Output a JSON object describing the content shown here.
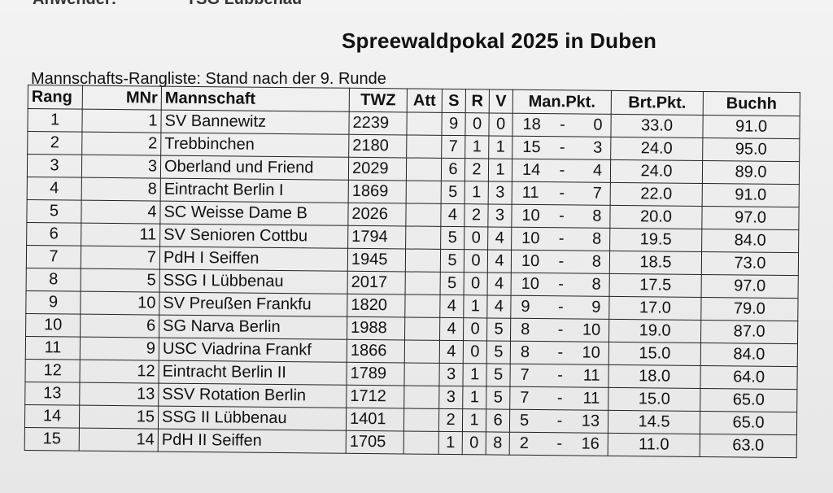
{
  "header": {
    "top_label": "Anwender:",
    "top_value": "TSG Lübbenau",
    "title": "Spreewaldpokal 2025 in Duben",
    "subtitle": "Mannschafts-Rangliste: Stand nach der 9. Runde"
  },
  "columns": [
    "Rang",
    "MNr",
    "Mannschaft",
    "TWZ",
    "Att",
    "S",
    "R",
    "V",
    "Man.Pkt.",
    "Brt.Pkt.",
    "Buchh"
  ],
  "rows": [
    {
      "rang": "1",
      "mnr": "1",
      "name": "SV Bannewitz",
      "twz": "2239",
      "att": "",
      "s": "9",
      "r": "0",
      "v": "0",
      "mp_a": "18",
      "mp_b": "0",
      "brt": "33.0",
      "buch": "91.0"
    },
    {
      "rang": "2",
      "mnr": "2",
      "name": "Trebbinchen",
      "twz": "2180",
      "att": "",
      "s": "7",
      "r": "1",
      "v": "1",
      "mp_a": "15",
      "mp_b": "3",
      "brt": "24.0",
      "buch": "95.0"
    },
    {
      "rang": "3",
      "mnr": "3",
      "name": "Oberland und Friend",
      "twz": "2029",
      "att": "",
      "s": "6",
      "r": "2",
      "v": "1",
      "mp_a": "14",
      "mp_b": "4",
      "brt": "24.0",
      "buch": "89.0"
    },
    {
      "rang": "4",
      "mnr": "8",
      "name": "Eintracht Berlin I",
      "twz": "1869",
      "att": "",
      "s": "5",
      "r": "1",
      "v": "3",
      "mp_a": "11",
      "mp_b": "7",
      "brt": "22.0",
      "buch": "91.0"
    },
    {
      "rang": "5",
      "mnr": "4",
      "name": "SC Weisse Dame B",
      "twz": "2026",
      "att": "",
      "s": "4",
      "r": "2",
      "v": "3",
      "mp_a": "10",
      "mp_b": "8",
      "brt": "20.0",
      "buch": "97.0"
    },
    {
      "rang": "6",
      "mnr": "11",
      "name": "SV Senioren Cottbu",
      "twz": "1794",
      "att": "",
      "s": "5",
      "r": "0",
      "v": "4",
      "mp_a": "10",
      "mp_b": "8",
      "brt": "19.5",
      "buch": "84.0"
    },
    {
      "rang": "7",
      "mnr": "7",
      "name": "PdH I Seiffen",
      "twz": "1945",
      "att": "",
      "s": "5",
      "r": "0",
      "v": "4",
      "mp_a": "10",
      "mp_b": "8",
      "brt": "18.5",
      "buch": "73.0"
    },
    {
      "rang": "8",
      "mnr": "5",
      "name": "SSG I Lübbenau",
      "twz": "2017",
      "att": "",
      "s": "5",
      "r": "0",
      "v": "4",
      "mp_a": "10",
      "mp_b": "8",
      "brt": "17.5",
      "buch": "97.0"
    },
    {
      "rang": "9",
      "mnr": "10",
      "name": "SV Preußen Frankfu",
      "twz": "1820",
      "att": "",
      "s": "4",
      "r": "1",
      "v": "4",
      "mp_a": "9",
      "mp_b": "9",
      "brt": "17.0",
      "buch": "79.0"
    },
    {
      "rang": "10",
      "mnr": "6",
      "name": "SG Narva Berlin",
      "twz": "1988",
      "att": "",
      "s": "4",
      "r": "0",
      "v": "5",
      "mp_a": "8",
      "mp_b": "10",
      "brt": "19.0",
      "buch": "87.0"
    },
    {
      "rang": "11",
      "mnr": "9",
      "name": "USC Viadrina Frankf",
      "twz": "1866",
      "att": "",
      "s": "4",
      "r": "0",
      "v": "5",
      "mp_a": "8",
      "mp_b": "10",
      "brt": "15.0",
      "buch": "84.0"
    },
    {
      "rang": "12",
      "mnr": "12",
      "name": "Eintracht Berlin II",
      "twz": "1789",
      "att": "",
      "s": "3",
      "r": "1",
      "v": "5",
      "mp_a": "7",
      "mp_b": "11",
      "brt": "18.0",
      "buch": "64.0"
    },
    {
      "rang": "13",
      "mnr": "13",
      "name": "SSV Rotation Berlin",
      "twz": "1712",
      "att": "",
      "s": "3",
      "r": "1",
      "v": "5",
      "mp_a": "7",
      "mp_b": "11",
      "brt": "15.0",
      "buch": "65.0"
    },
    {
      "rang": "14",
      "mnr": "15",
      "name": "SSG II Lübbenau",
      "twz": "1401",
      "att": "",
      "s": "2",
      "r": "1",
      "v": "6",
      "mp_a": "5",
      "mp_b": "13",
      "brt": "14.5",
      "buch": "65.0"
    },
    {
      "rang": "15",
      "mnr": "14",
      "name": "PdH II Seiffen",
      "twz": "1705",
      "att": "",
      "s": "1",
      "r": "0",
      "v": "8",
      "mp_a": "2",
      "mp_b": "16",
      "brt": "11.0",
      "buch": "63.0"
    }
  ],
  "dash": "-"
}
